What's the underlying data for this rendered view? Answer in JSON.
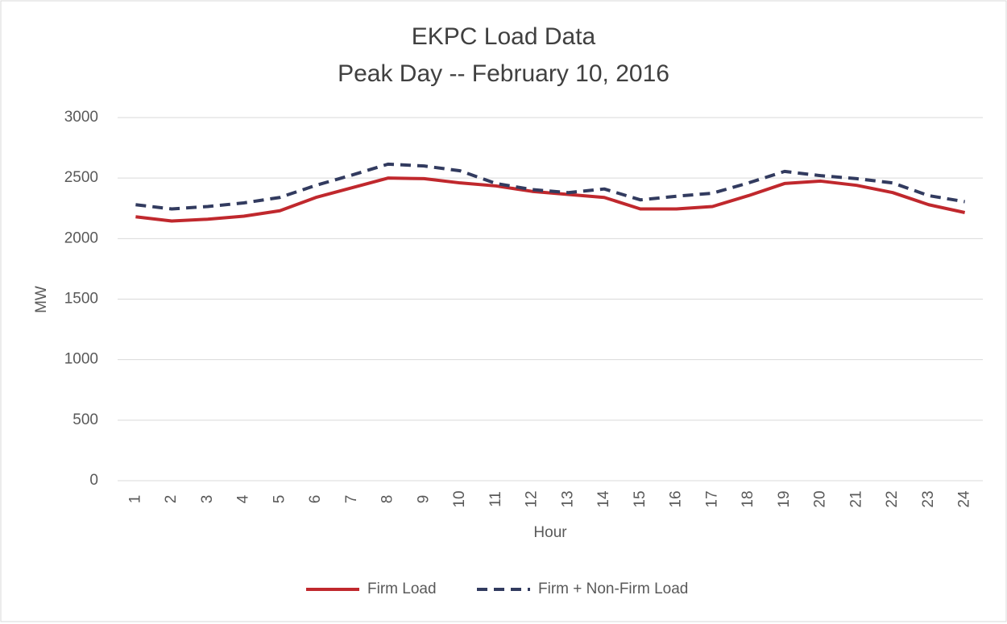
{
  "chart_data": {
    "type": "line",
    "title": "EKPC Load Data",
    "subtitle": "Peak Day -- February 10, 2016",
    "x_label": "Hour",
    "y_label": "MW",
    "categories": [
      "1",
      "2",
      "3",
      "4",
      "5",
      "6",
      "7",
      "8",
      "9",
      "10",
      "11",
      "12",
      "13",
      "14",
      "15",
      "16",
      "17",
      "18",
      "19",
      "20",
      "21",
      "22",
      "23",
      "24"
    ],
    "series": [
      {
        "name": "Firm Load",
        "color": "#c0282d",
        "dashed": false,
        "values": [
          2180,
          2145,
          2160,
          2185,
          2230,
          2340,
          2420,
          2500,
          2495,
          2460,
          2435,
          2390,
          2365,
          2340,
          2245,
          2245,
          2265,
          2355,
          2455,
          2475,
          2440,
          2380,
          2280,
          2215
        ]
      },
      {
        "name": "Firm + Non-Firm Load",
        "color": "#323b5f",
        "dashed": true,
        "values": [
          2280,
          2245,
          2265,
          2295,
          2340,
          2440,
          2525,
          2615,
          2600,
          2560,
          2455,
          2405,
          2380,
          2410,
          2320,
          2350,
          2375,
          2460,
          2555,
          2520,
          2495,
          2460,
          2355,
          2305
        ]
      }
    ],
    "ylim": [
      0,
      3000
    ],
    "yticks": [
      0,
      500,
      1000,
      1500,
      2000,
      2500,
      3000
    ],
    "grid": true,
    "legend": "bottom"
  }
}
